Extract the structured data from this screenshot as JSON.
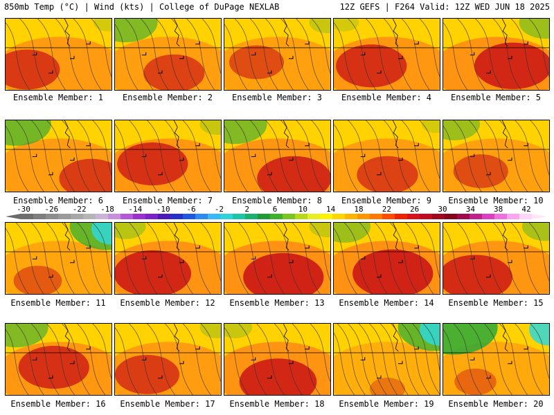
{
  "header": {
    "left": "850mb Temp (°C) | Wind (kts) | College of DuPage NEXLAB",
    "right": "12Z GEFS | F264 Valid: 12Z WED JUN 18 2025"
  },
  "members": [
    {
      "label": "Ensemble Member: 1",
      "heat": 0.62,
      "cool": 0.15,
      "hot_x": 0.2,
      "hot_y": 0.7,
      "contours": 6
    },
    {
      "label": "Ensemble Member: 2",
      "heat": 0.55,
      "cool": 0.45,
      "hot_x": 0.55,
      "hot_y": 0.75,
      "contours": 7
    },
    {
      "label": "Ensemble Member: 3",
      "heat": 0.45,
      "cool": 0.2,
      "hot_x": 0.3,
      "hot_y": 0.6,
      "contours": 7
    },
    {
      "label": "Ensemble Member: 4",
      "heat": 0.7,
      "cool": 0.15,
      "hot_x": 0.35,
      "hot_y": 0.65,
      "contours": 6
    },
    {
      "label": "Ensemble Member: 5",
      "heat": 0.8,
      "cool": 0.35,
      "hot_x": 0.65,
      "hot_y": 0.65,
      "contours": 6
    },
    {
      "label": "Ensemble Member: 6",
      "heat": 0.6,
      "cool": 0.5,
      "hot_x": 0.8,
      "hot_y": 0.8,
      "contours": 7
    },
    {
      "label": "Ensemble Member: 7",
      "heat": 0.7,
      "cool": 0.2,
      "hot_x": 0.35,
      "hot_y": 0.6,
      "contours": 6
    },
    {
      "label": "Ensemble Member: 8",
      "heat": 0.75,
      "cool": 0.45,
      "hot_x": 0.65,
      "hot_y": 0.8,
      "contours": 7
    },
    {
      "label": "Ensemble Member: 9",
      "heat": 0.55,
      "cool": 0.15,
      "hot_x": 0.5,
      "hot_y": 0.75,
      "contours": 6
    },
    {
      "label": "Ensemble Member: 10",
      "heat": 0.45,
      "cool": 0.35,
      "hot_x": 0.35,
      "hot_y": 0.7,
      "contours": 7
    },
    {
      "label": "Ensemble Member: 11",
      "heat": 0.35,
      "cool": 0.55,
      "hot_x": 0.3,
      "hot_y": 0.8,
      "contours": 7
    },
    {
      "label": "Ensemble Member: 12",
      "heat": 0.8,
      "cool": 0.25,
      "hot_x": 0.35,
      "hot_y": 0.7,
      "contours": 6
    },
    {
      "label": "Ensemble Member: 13",
      "heat": 0.85,
      "cool": 0.2,
      "hot_x": 0.55,
      "hot_y": 0.75,
      "contours": 6
    },
    {
      "label": "Ensemble Member: 14",
      "heat": 0.85,
      "cool": 0.35,
      "hot_x": 0.55,
      "hot_y": 0.7,
      "contours": 7
    },
    {
      "label": "Ensemble Member: 15",
      "heat": 0.75,
      "cool": 0.3,
      "hot_x": 0.3,
      "hot_y": 0.75,
      "contours": 6
    },
    {
      "label": "Ensemble Member: 16",
      "heat": 0.7,
      "cool": 0.45,
      "hot_x": 0.45,
      "hot_y": 0.6,
      "contours": 7
    },
    {
      "label": "Ensemble Member: 17",
      "heat": 0.6,
      "cool": 0.2,
      "hot_x": 0.3,
      "hot_y": 0.7,
      "contours": 6
    },
    {
      "label": "Ensemble Member: 18",
      "heat": 0.8,
      "cool": 0.2,
      "hot_x": 0.5,
      "hot_y": 0.8,
      "contours": 6
    },
    {
      "label": "Ensemble Member: 19",
      "heat": 0.15,
      "cool": 0.55,
      "hot_x": 0.5,
      "hot_y": 0.9,
      "contours": 10
    },
    {
      "label": "Ensemble Member: 20",
      "heat": 0.25,
      "cool": 0.65,
      "hot_x": 0.3,
      "hot_y": 0.8,
      "contours": 7
    }
  ],
  "colorbar": {
    "ticks": [
      "-30",
      "-26",
      "-22",
      "-18",
      "-14",
      "-10",
      "-6",
      "-2",
      "2",
      "6",
      "10",
      "14",
      "18",
      "22",
      "26",
      "30",
      "34",
      "38",
      "42"
    ],
    "colors": [
      "#6e6e6e",
      "#7e7e7e",
      "#8c8c8c",
      "#9a9a9a",
      "#a7a7a7",
      "#b5b5b5",
      "#c9b4d8",
      "#c88fdc",
      "#b45ad6",
      "#9b2fd0",
      "#7d22c8",
      "#4b1bb8",
      "#2730c8",
      "#1f58e0",
      "#2f8af0",
      "#38b8f6",
      "#2fd2d8",
      "#1ec6a8",
      "#19b070",
      "#1f9a35",
      "#3fb02a",
      "#7cc41f",
      "#b8d81a",
      "#e6ef22",
      "#fff200",
      "#ffd400",
      "#ffb400",
      "#ff9600",
      "#ff7800",
      "#ff4a00",
      "#ee2200",
      "#d8101a",
      "#c00a22",
      "#a0081e",
      "#84061a",
      "#a00a4a",
      "#c0208a",
      "#dc40c0",
      "#f070e0",
      "#fba4f0",
      "#ffd6f8"
    ]
  },
  "colors": {
    "hot": "#c80d16",
    "warm": "#ff7a1a",
    "mild": "#ffd200",
    "cool": "#2aa83a",
    "cold": "#2fd8d8"
  }
}
